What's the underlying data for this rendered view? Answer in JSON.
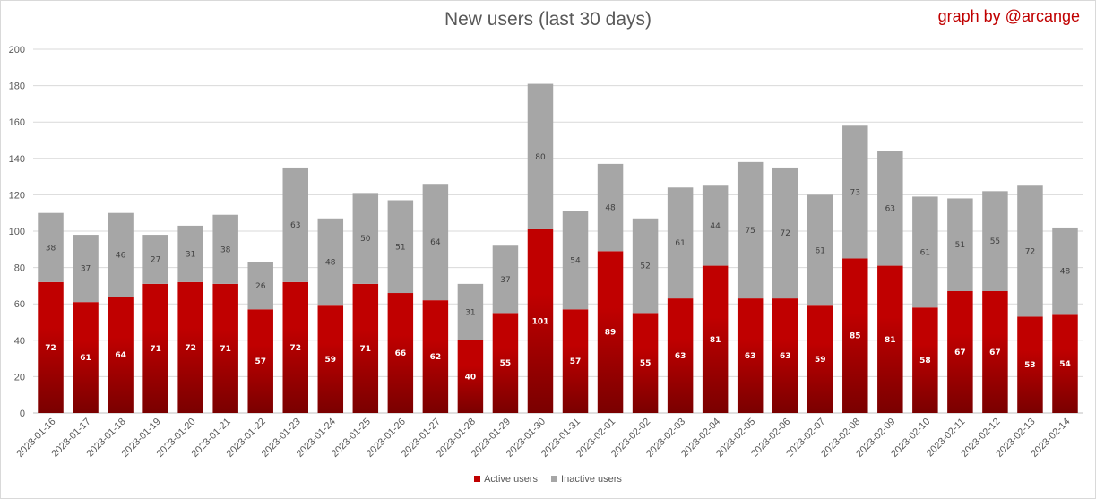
{
  "title": "New users (last 30 days)",
  "credit": "graph by @arcange",
  "colors": {
    "active_top": "#c00000",
    "active_bottom": "#7a0000",
    "inactive": "#a6a6a6",
    "grid": "#d9d9d9"
  },
  "chart_data": {
    "type": "bar",
    "stacked": true,
    "title": "New users (last 30 days)",
    "categories": [
      "2023-01-16",
      "2023-01-17",
      "2023-01-18",
      "2023-01-19",
      "2023-01-20",
      "2023-01-21",
      "2023-01-22",
      "2023-01-23",
      "2023-01-24",
      "2023-01-25",
      "2023-01-26",
      "2023-01-27",
      "2023-01-28",
      "2023-01-29",
      "2023-01-30",
      "2023-01-31",
      "2023-02-01",
      "2023-02-02",
      "2023-02-03",
      "2023-02-04",
      "2023-02-05",
      "2023-02-06",
      "2023-02-07",
      "2023-02-08",
      "2023-02-09",
      "2023-02-10",
      "2023-02-11",
      "2023-02-12",
      "2023-02-13",
      "2023-02-14"
    ],
    "series": [
      {
        "name": "Active users",
        "values": [
          72,
          61,
          64,
          71,
          72,
          71,
          57,
          72,
          59,
          71,
          66,
          62,
          40,
          55,
          101,
          57,
          89,
          55,
          63,
          81,
          63,
          63,
          59,
          85,
          81,
          58,
          67,
          67,
          53,
          54
        ]
      },
      {
        "name": "Inactive users",
        "values": [
          38,
          37,
          46,
          27,
          31,
          38,
          26,
          63,
          48,
          50,
          51,
          64,
          31,
          37,
          80,
          54,
          48,
          52,
          61,
          44,
          75,
          72,
          61,
          73,
          63,
          61,
          51,
          55,
          72,
          48
        ]
      }
    ],
    "ylim": [
      0,
      200
    ],
    "yticks": [
      0,
      20,
      40,
      60,
      80,
      100,
      120,
      140,
      160,
      180,
      200
    ],
    "grid": true,
    "legend": "bottom"
  }
}
